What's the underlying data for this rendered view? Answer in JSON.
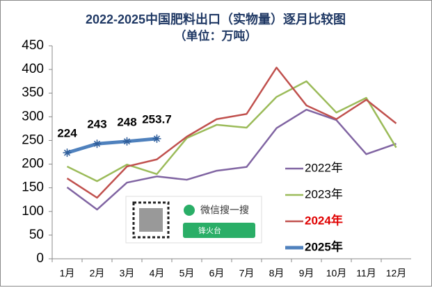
{
  "chart_data": {
    "type": "line",
    "title": "2022-2025中国肥料出口（实物量）逐月比较图",
    "subtitle": "（单位：万吨）",
    "categories": [
      "1月",
      "2月",
      "3月",
      "4月",
      "5月",
      "6月",
      "7月",
      "8月",
      "9月",
      "10月",
      "11月",
      "12月"
    ],
    "series": [
      {
        "name": "2022年",
        "color": "#8064a2",
        "values": [
          151,
          104,
          161,
          174,
          167,
          186,
          194,
          276,
          315,
          293,
          221,
          243
        ]
      },
      {
        "name": "2023年",
        "color": "#9bbb59",
        "values": [
          195,
          164,
          199,
          179,
          255,
          283,
          277,
          342,
          375,
          309,
          340,
          235
        ]
      },
      {
        "name": "2024年",
        "color": "#c0504d",
        "values": [
          170,
          129,
          195,
          210,
          258,
          295,
          306,
          404,
          324,
          295,
          336,
          286
        ]
      },
      {
        "name": "2025年",
        "color": "#4f81bd",
        "values": [
          224,
          243,
          248,
          253.7,
          null,
          null,
          null,
          null,
          null,
          null,
          null,
          null
        ]
      }
    ],
    "ylim": [
      0,
      450
    ],
    "yticks": [
      0,
      50,
      100,
      150,
      200,
      250,
      300,
      350,
      400,
      450
    ],
    "grid": false,
    "legend": "right"
  },
  "watermark": {
    "text": "微信搜一搜",
    "search": "锋火台"
  }
}
